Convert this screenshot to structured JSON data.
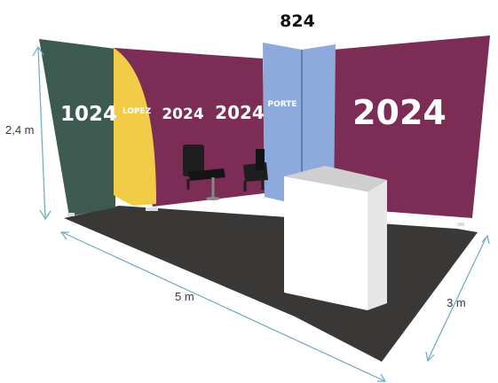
{
  "panels": {
    "left_green": {
      "label": "1024",
      "color": "#3c5a50"
    },
    "yellow_flag": {
      "label": "LOPEZ",
      "color": "#f2cc46"
    },
    "back_wall": {
      "label_1": "2024",
      "label_2": "2024",
      "color": "#7c2d55"
    },
    "door": {
      "label": "PORTE",
      "top_label": "824",
      "color": "#8ea9dc"
    },
    "right_wall": {
      "label": "2024",
      "color": "#7c2d55"
    }
  },
  "dimensions": {
    "height": "2,4 m",
    "width": "5 m",
    "depth": "3 m"
  },
  "colors": {
    "floor": "#3a3837",
    "counter": "#ffffff",
    "dimension_line": "#6aaac0",
    "chair": "#1e1e1e"
  }
}
